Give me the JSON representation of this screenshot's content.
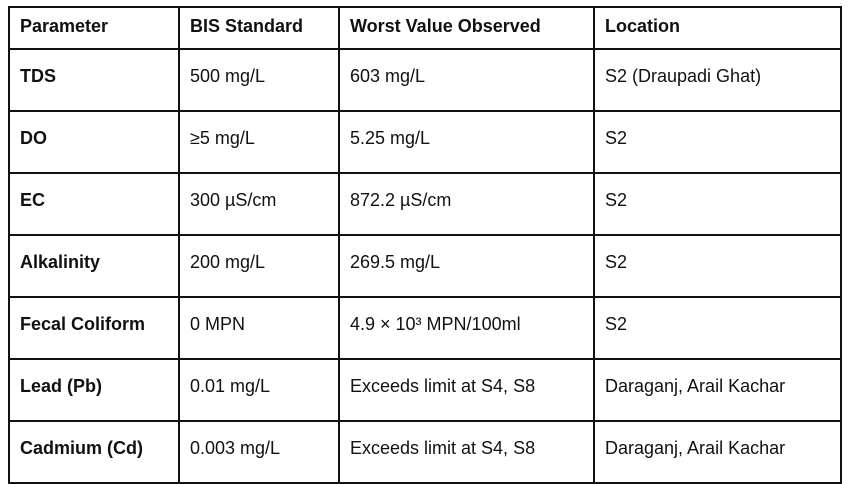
{
  "table": {
    "header": [
      "Parameter",
      "BIS Standard",
      "Worst Value Observed",
      "Location"
    ],
    "rows": [
      [
        "TDS",
        "500 mg/L",
        "603 mg/L",
        "S2 (Draupadi Ghat)"
      ],
      [
        "DO",
        "≥5 mg/L",
        "5.25 mg/L",
        "S2"
      ],
      [
        "EC",
        "300 µS/cm",
        "872.2 µS/cm",
        "S2"
      ],
      [
        "Alkalinity",
        "200 mg/L",
        "269.5 mg/L",
        "S2"
      ],
      [
        "Fecal Coliform",
        "0 MPN",
        "4.9 × 10³ MPN/100ml",
        "S2"
      ],
      [
        "Lead (Pb)",
        "0.01 mg/L",
        "Exceeds limit at S4, S8",
        "Daraganj, Arail Kachar"
      ],
      [
        "Cadmium (Cd)",
        "0.003 mg/L",
        "Exceeds limit at S4, S8",
        "Daraganj, Arail Kachar"
      ]
    ]
  }
}
